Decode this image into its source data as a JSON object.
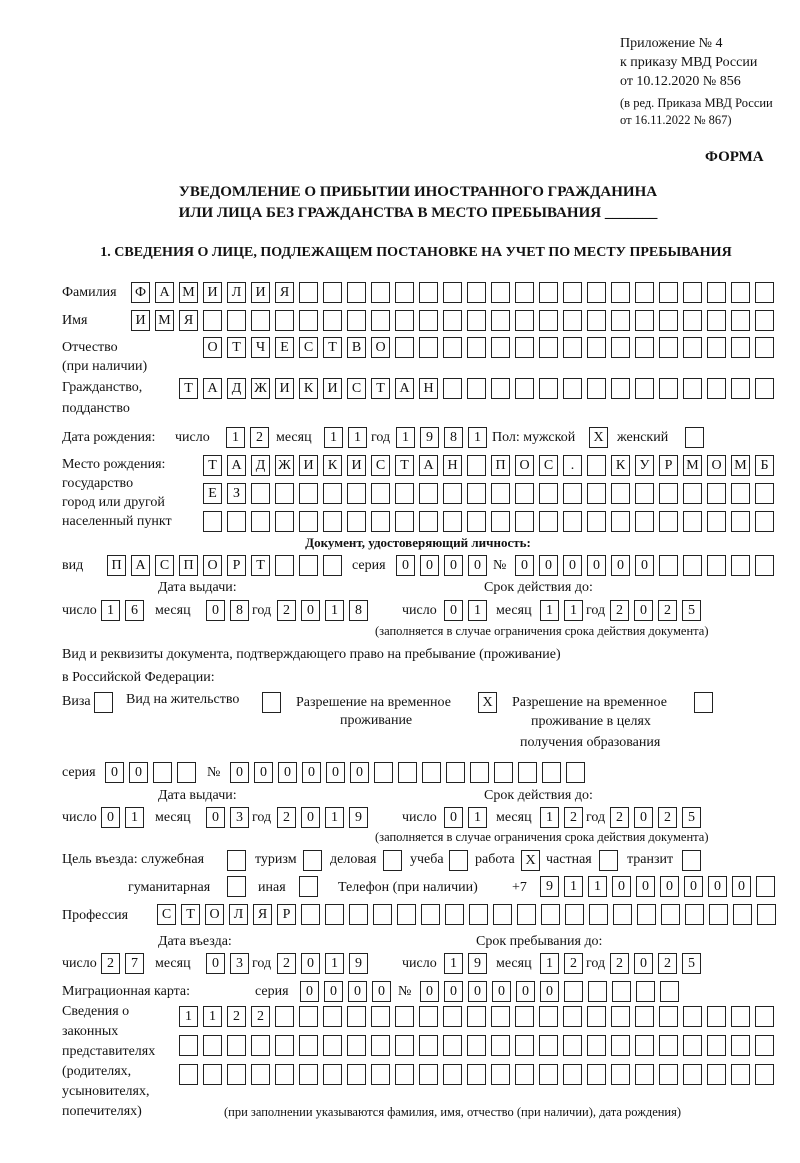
{
  "header": {
    "appendix": "Приложение № 4",
    "order": "к приказу МВД России",
    "order_date": "от 10.12.2020 № 856",
    "edition": "(в ред. Приказа МВД России",
    "edition_date": "от 16.11.2022 № 867)",
    "form_label": "ФОРМА",
    "title_line1": "УВЕДОМЛЕНИЕ О ПРИБЫТИИ ИНОСТРАННОГО ГРАЖДАНИНА",
    "title_line2": "ИЛИ ЛИЦА БЕЗ ГРАЖДАНСТВА В МЕСТО ПРЕБЫВАНИЯ _______",
    "section1": "1. СВЕДЕНИЯ О ЛИЦЕ, ПОДЛЕЖАЩЕМ ПОСТАНОВКЕ НА УЧЕТ ПО МЕСТУ ПРЕБЫВАНИЯ"
  },
  "person": {
    "surname_label": "Фамилия",
    "surname": "ФАМИЛИЯ",
    "name_label": "Имя",
    "name": "ИМЯ",
    "patronymic_label": "Отчество",
    "patronymic_label2": "(при наличии)",
    "patronymic": "ОТЧЕСТВО",
    "citizenship_label": "Гражданство,",
    "citizenship_label2": "подданство",
    "citizenship": "ТАДЖИКИСТАН",
    "birth_label": "Дата рождения:",
    "day_label": "число",
    "month_label": "месяц",
    "year_label": "год",
    "birth_day": "12",
    "birth_month": "11",
    "birth_year": "1981",
    "sex_label": "Пол: мужской",
    "female_label": "женский",
    "male": "X",
    "female": "",
    "birthplace_label1": "Место рождения:",
    "birthplace_label2": "государство",
    "birthplace_label3": "город или другой",
    "birthplace_label4": "населенный пункт",
    "birthplace_line1": "ТАДЖИКИСТАН ПОС. КУРМОМБ",
    "birthplace_line2": "ЕЗ",
    "birthplace_line3": ""
  },
  "id_document": {
    "heading": "Документ, удостоверяющий личность:",
    "type_label": "вид",
    "type": "ПАСПОРТ",
    "series_label": "серия",
    "series": "0000",
    "number_label": "№",
    "number": "000000",
    "issue_label": "Дата выдачи:",
    "valid_label": "Срок действия до:",
    "day_label": "число",
    "month_label": "месяц",
    "year_label": "год",
    "issue_day": "16",
    "issue_month": "08",
    "issue_year": "2018",
    "valid_day": "01",
    "valid_month": "11",
    "valid_year": "2025",
    "note": "(заполняется в случае ограничения срока действия документа)"
  },
  "stay_document": {
    "heading1": "Вид и реквизиты документа, подтверждающего право на пребывание (проживание)",
    "heading2": "в Российской Федерации:",
    "visa_label": "Виза",
    "visa": "",
    "residence_label": "Вид на жительство",
    "residence": "",
    "temp_label1": "Разрешение на временное",
    "temp_label2": "проживание",
    "temp": "X",
    "edu_label1": "Разрешение на временное",
    "edu_label2": "проживание в целях",
    "edu_label3": "получения образования",
    "edu": "",
    "series_label": "серия",
    "series": "00",
    "number_label": "№",
    "number": "000000",
    "issue_label": "Дата выдачи:",
    "valid_label": "Срок действия до:",
    "day_label": "число",
    "month_label": "месяц",
    "year_label": "год",
    "issue_day": "01",
    "issue_month": "03",
    "issue_year": "2019",
    "valid_day": "01",
    "valid_month": "12",
    "valid_year": "2025",
    "note": "(заполняется в случае ограничения срока действия документа)"
  },
  "purpose": {
    "label": "Цель въезда: служебная",
    "official": "",
    "tourism_label": "туризм",
    "tourism": "",
    "business_label": "деловая",
    "business": "",
    "study_label": "учеба",
    "study": "",
    "work_label": "работа",
    "work": "X",
    "private_label": "частная",
    "private": "",
    "transit_label": "транзит",
    "transit": "",
    "humanitarian_label": "гуманитарная",
    "humanitarian": "",
    "other_label": "иная",
    "other": "",
    "phone_label": "Телефон (при наличии)",
    "phone_prefix": "+7",
    "phone": "911000000"
  },
  "profession": {
    "label": "Профессия",
    "value": "СТОЛЯР"
  },
  "entry": {
    "entry_label": "Дата въезда:",
    "stay_until_label": "Срок пребывания до:",
    "day_label": "число",
    "month_label": "месяц",
    "year_label": "год",
    "entry_day": "27",
    "entry_month": "03",
    "entry_year": "2019",
    "until_day": "19",
    "until_month": "12",
    "until_year": "2025"
  },
  "migration_card": {
    "label": "Миграционная карта:",
    "series_label": "серия",
    "series": "0000",
    "number_label": "№",
    "number": "000000"
  },
  "representatives": {
    "label1": "Сведения о",
    "label2": "законных",
    "label3": "представителях",
    "label4": "(родителях,",
    "label5": "усыновителях,",
    "label6": "попечителях)",
    "line1": "1122",
    "line2": "",
    "line3": "",
    "note": "(при заполнении указываются фамилия, имя, отчество (при наличии), дата рождения)"
  }
}
